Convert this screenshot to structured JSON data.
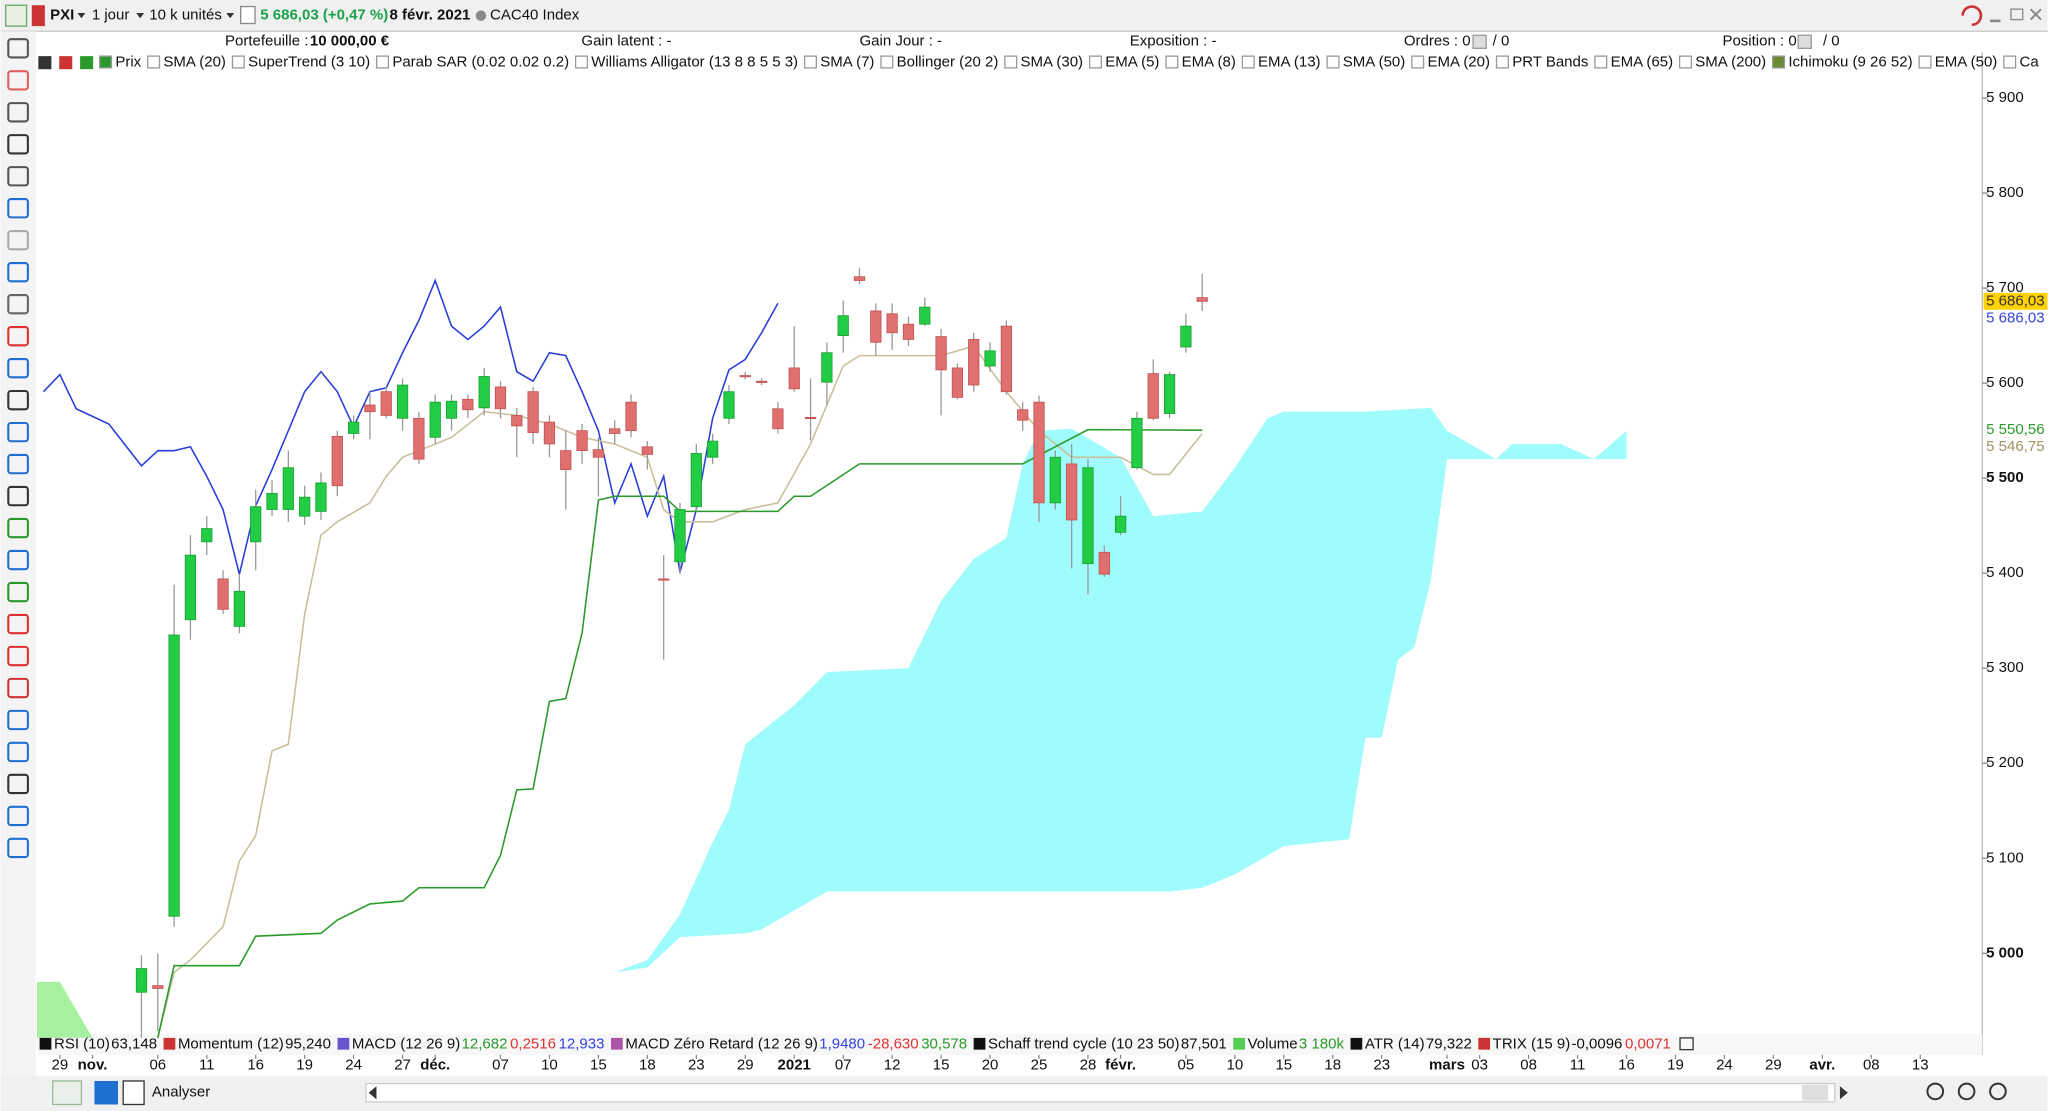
{
  "toolbar": {
    "symbol": "PXI",
    "period": "1 jour",
    "units": "10 k unités",
    "quote": "5 686,03 (+0,47 %)",
    "date": "8 févr. 2021",
    "instrument": "CAC40 Index"
  },
  "account": {
    "portfolio_label": "Portefeuille :",
    "portfolio_value": "10 000,00 €",
    "gain_latent": "Gain latent : -",
    "gain_jour": "Gain Jour : -",
    "exposition": "Exposition : -",
    "ordres": "Ordres : 0",
    "ordres_total": "/ 0",
    "position": "Position : 0",
    "position_total": "/ 0"
  },
  "legend_items": [
    {
      "label": "Prix",
      "checked": true
    },
    {
      "label": "SMA (20)",
      "checked": false
    },
    {
      "label": "SuperTrend (3 10)",
      "checked": false
    },
    {
      "label": "Parab SAR (0.02 0.02 0.2)",
      "checked": false
    },
    {
      "label": "Williams Alligator (13 8 8 5 5 3)",
      "checked": false
    },
    {
      "label": "SMA (7)",
      "checked": false
    },
    {
      "label": "Bollinger (20 2)",
      "checked": false
    },
    {
      "label": "SMA (30)",
      "checked": false
    },
    {
      "label": "EMA (5)",
      "checked": false
    },
    {
      "label": "EMA (8)",
      "checked": false
    },
    {
      "label": "EMA (13)",
      "checked": false
    },
    {
      "label": "SMA (50)",
      "checked": false
    },
    {
      "label": "EMA (20)",
      "checked": false
    },
    {
      "label": "PRT Bands",
      "checked": false
    },
    {
      "label": "EMA (65)",
      "checked": false
    },
    {
      "label": "SMA (200)",
      "checked": false
    },
    {
      "label": "Ichimoku (9 26 52)",
      "checked": true
    },
    {
      "label": "EMA (50)",
      "checked": false
    },
    {
      "label": "Ca",
      "checked": false
    }
  ],
  "chart_data": {
    "type": "candlestick",
    "open": [
      4959,
      4966,
      5039,
      5351,
      5433,
      5394,
      5344,
      5433,
      5467,
      5467,
      5460,
      5465,
      5544,
      5547,
      5577,
      5591,
      5563,
      5563,
      5543,
      5563,
      5583,
      5574,
      5596,
      5566,
      5591,
      5559,
      5529,
      5550,
      5530,
      5552,
      5580,
      5533,
      5394,
      5412,
      5470,
      5522,
      5563,
      5608,
      5602,
      5573,
      5616,
      5564,
      5601,
      5650,
      5712,
      5676,
      5673,
      5662,
      5662,
      5649,
      5616,
      5646,
      5618,
      5660,
      5572,
      5580,
      5474,
      5515,
      5410,
      5422,
      5443,
      5511,
      5610,
      5568,
      5638,
      5690
    ],
    "high": [
      4998,
      5000,
      5388,
      5440,
      5460,
      5403,
      5399,
      5488,
      5498,
      5529,
      5492,
      5506,
      5550,
      5566,
      5591,
      5596,
      5605,
      5570,
      5588,
      5588,
      5588,
      5616,
      5602,
      5574,
      5596,
      5566,
      5550,
      5557,
      5543,
      5561,
      5588,
      5539,
      5419,
      5474,
      5536,
      5547,
      5598,
      5612,
      5605,
      5580,
      5660,
      5605,
      5643,
      5687,
      5721,
      5684,
      5684,
      5670,
      5690,
      5657,
      5621,
      5653,
      5643,
      5666,
      5580,
      5587,
      5529,
      5536,
      5520,
      5429,
      5481,
      5570,
      5625,
      5612,
      5673,
      5715
    ],
    "low": [
      4911,
      4918,
      5028,
      5330,
      5419,
      5357,
      5337,
      5403,
      5460,
      5454,
      5451,
      5456,
      5481,
      5541,
      5541,
      5563,
      5550,
      5515,
      5536,
      5550,
      5563,
      5566,
      5563,
      5522,
      5536,
      5522,
      5467,
      5515,
      5481,
      5536,
      5543,
      5509,
      5309,
      5399,
      5465,
      5515,
      5557,
      5604,
      5598,
      5547,
      5591,
      5540,
      5577,
      5632,
      5704,
      5629,
      5635,
      5639,
      5660,
      5566,
      5583,
      5591,
      5612,
      5588,
      5550,
      5454,
      5467,
      5405,
      5378,
      5396,
      5440,
      5509,
      5561,
      5563,
      5632,
      5676
    ],
    "close": [
      4984,
      4963,
      5335,
      5419,
      5447,
      5362,
      5381,
      5470,
      5484,
      5511,
      5480,
      5495,
      5492,
      5559,
      5570,
      5566,
      5598,
      5520,
      5580,
      5581,
      5572,
      5607,
      5573,
      5555,
      5548,
      5536,
      5509,
      5529,
      5522,
      5547,
      5550,
      5525,
      5393,
      5467,
      5526,
      5539,
      5591,
      5607,
      5601,
      5552,
      5594,
      5563,
      5632,
      5671,
      5708,
      5643,
      5653,
      5646,
      5680,
      5614,
      5585,
      5598,
      5634,
      5591,
      5561,
      5474,
      5522,
      5456,
      5511,
      5399,
      5460,
      5563,
      5563,
      5609,
      5660,
      5686.03
    ],
    "up_color": "#22cc44",
    "down_color": "#e07070",
    "lines": [
      {
        "color": "#2a3fd8",
        "x": [
          -6,
          -5,
          -4,
          -2,
          0,
          1,
          2,
          3,
          4,
          5,
          6,
          7,
          8,
          9,
          10,
          11,
          12,
          13,
          14,
          15,
          16,
          17,
          18,
          19,
          20,
          21,
          22,
          23,
          24,
          25,
          26,
          27,
          28,
          29,
          30,
          31,
          32,
          33,
          34,
          35,
          36,
          37,
          38,
          39
        ],
        "values": [
          5591,
          5609,
          5573,
          5557,
          5513,
          5529,
          5529,
          5533,
          5502,
          5467,
          5399,
          5471,
          5509,
          5550,
          5591,
          5612,
          5591,
          5554,
          5591,
          5595,
          5632,
          5666,
          5708,
          5660,
          5646,
          5660,
          5680,
          5612,
          5602,
          5632,
          5629,
          5591,
          5550,
          5474,
          5515,
          5460,
          5502,
          5401,
          5467,
          5563,
          5614,
          5625,
          5653,
          5684
        ]
      },
      {
        "color": "#c8bf9a",
        "x": [
          1,
          2,
          3,
          5,
          6,
          7,
          8,
          9,
          10,
          11,
          12,
          14,
          15,
          16,
          17,
          19,
          21,
          23,
          25,
          27,
          29,
          31,
          32,
          33,
          35,
          37,
          39,
          41,
          43,
          44,
          49,
          51,
          53,
          55,
          56,
          57,
          60,
          62,
          63,
          65
        ],
        "values": [
          4911,
          4980,
          4993,
          5028,
          5097,
          5124,
          5213,
          5220,
          5357,
          5440,
          5454,
          5474,
          5502,
          5522,
          5529,
          5543,
          5570,
          5566,
          5557,
          5543,
          5536,
          5522,
          5467,
          5454,
          5454,
          5467,
          5474,
          5536,
          5618,
          5629,
          5629,
          5639,
          5591,
          5550,
          5536,
          5522,
          5522,
          5504,
          5504,
          5546.75
        ]
      },
      {
        "color": "#2a9a2a",
        "x": [
          1,
          2,
          4,
          6,
          7,
          11,
          12,
          14,
          16,
          17,
          19,
          21,
          22,
          23,
          24,
          25,
          26,
          27,
          28,
          29,
          32,
          33,
          37,
          39,
          40,
          41,
          44,
          54,
          58,
          65
        ],
        "values": [
          4911,
          4987,
          4987,
          4987,
          5018,
          5021,
          5035,
          5052,
          5055,
          5069,
          5069,
          5069,
          5103,
          5172,
          5173,
          5265,
          5268,
          5337,
          5477,
          5481,
          5481,
          5465,
          5465,
          5465,
          5481,
          5481,
          5515,
          5515,
          5551,
          5550.56
        ]
      }
    ],
    "clouds": [
      {
        "color": "#a0fbfd",
        "x_upper": [
          28,
          29,
          31,
          33,
          35,
          36,
          37,
          40,
          42,
          47,
          49,
          51,
          53,
          54,
          55,
          57,
          60,
          62,
          65,
          67,
          69,
          70,
          75,
          79,
          80,
          83,
          84,
          87,
          89,
          91
        ],
        "upper": [
          4911,
          4980,
          4993,
          5041,
          5117,
          5151,
          5220,
          5261,
          5296,
          5300,
          5371,
          5415,
          5437,
          5515,
          5550,
          5552,
          5522,
          5460,
          5465,
          5511,
          5563,
          5570,
          5570,
          5574,
          5550,
          5520,
          5536,
          5536,
          5520,
          5550
        ],
        "x_lower": [
          28,
          29,
          31,
          33,
          37,
          38,
          42,
          63,
          65,
          67,
          69,
          70,
          74,
          75,
          76,
          77,
          78,
          79,
          80,
          91
        ],
        "lower": [
          4911,
          4980,
          4985,
          5017,
          5021,
          5025,
          5065,
          5065,
          5069,
          5083,
          5103,
          5113,
          5120,
          5227,
          5227,
          5309,
          5322,
          5392,
          5520,
          5520
        ]
      },
      {
        "color": "#a6f0a0",
        "x_upper": [
          -7,
          -5,
          -3
        ],
        "upper": [
          4970,
          4970,
          4911
        ],
        "x_lower": [
          -7,
          -5,
          -3
        ],
        "lower": [
          4911,
          4911,
          4911
        ]
      }
    ],
    "ylim": [
      4911,
      5918
    ],
    "yticks": [
      {
        "value": 5000,
        "label": "5 000"
      },
      {
        "value": 5100,
        "label": "5 100"
      },
      {
        "value": 5200,
        "label": "5 200"
      },
      {
        "value": 5300,
        "label": "5 300"
      },
      {
        "value": 5400,
        "label": "5 400"
      },
      {
        "value": 5500,
        "label": "5 500"
      },
      {
        "value": 5600,
        "label": "5 600"
      },
      {
        "value": 5700,
        "label": "5 700"
      },
      {
        "value": 5800,
        "label": "5 800"
      },
      {
        "value": 5900,
        "label": "5 900"
      }
    ],
    "xlim": [
      -6.5,
      113
    ],
    "xticks": [
      {
        "value": -5,
        "label": "29"
      },
      {
        "value": -3,
        "label": "nov."
      },
      {
        "value": 1,
        "label": "06"
      },
      {
        "value": 4,
        "label": "11"
      },
      {
        "value": 7,
        "label": "16"
      },
      {
        "value": 10,
        "label": "19"
      },
      {
        "value": 13,
        "label": "24"
      },
      {
        "value": 16,
        "label": "27"
      },
      {
        "value": 18,
        "label": "déc."
      },
      {
        "value": 22,
        "label": "07"
      },
      {
        "value": 25,
        "label": "10"
      },
      {
        "value": 28,
        "label": "15"
      },
      {
        "value": 31,
        "label": "18"
      },
      {
        "value": 34,
        "label": "23"
      },
      {
        "value": 37,
        "label": "29"
      },
      {
        "value": 40,
        "label": "2021"
      },
      {
        "value": 43,
        "label": "07"
      },
      {
        "value": 46,
        "label": "12"
      },
      {
        "value": 49,
        "label": "15"
      },
      {
        "value": 52,
        "label": "20"
      },
      {
        "value": 55,
        "label": "25"
      },
      {
        "value": 58,
        "label": "28"
      },
      {
        "value": 60,
        "label": "févr."
      },
      {
        "value": 64,
        "label": "05"
      },
      {
        "value": 67,
        "label": "10"
      },
      {
        "value": 70,
        "label": "15"
      },
      {
        "value": 73,
        "label": "18"
      },
      {
        "value": 76,
        "label": "23"
      },
      {
        "value": 80,
        "label": "mars"
      },
      {
        "value": 82,
        "label": "03"
      },
      {
        "value": 85,
        "label": "08"
      },
      {
        "value": 88,
        "label": "11"
      },
      {
        "value": 91,
        "label": "16"
      },
      {
        "value": 94,
        "label": "19"
      },
      {
        "value": 97,
        "label": "24"
      },
      {
        "value": 100,
        "label": "29"
      },
      {
        "value": 103,
        "label": "avr."
      },
      {
        "value": 106,
        "label": "08"
      },
      {
        "value": 109,
        "label": "13"
      }
    ],
    "price_tags": [
      {
        "value": 5686.03,
        "label": "5 686,03",
        "color": "#333333",
        "background": "#ffd200"
      },
      {
        "value": 5686.03,
        "label": "5 686,03",
        "color": "#3344dd",
        "background": "#ffffff"
      },
      {
        "value": 5550.56,
        "label": "5 550,56",
        "color": "#2a9a2a",
        "background": "#ffffff"
      },
      {
        "value": 5546.75,
        "label": "5 546,75",
        "color": "#a09060",
        "background": "#ffffff"
      }
    ]
  },
  "panels": [
    {
      "name": "RSI (10)",
      "color": "#111111",
      "values": [
        {
          "text": "63,148",
          "color": "#111111"
        }
      ]
    },
    {
      "name": "Momentum (12)",
      "color": "#cc3333",
      "values": [
        {
          "text": "95,240",
          "color": "#111111"
        }
      ]
    },
    {
      "name": "MACD (12 26 9)",
      "color": "#6655cc",
      "values": [
        {
          "text": "12,682",
          "color": "#2a9a2a"
        },
        {
          "text": "0,2516",
          "color": "#dd3333"
        },
        {
          "text": "12,933",
          "color": "#3344dd"
        }
      ]
    },
    {
      "name": "MACD Zéro Retard (12 26 9)",
      "color": "#aa55aa",
      "values": [
        {
          "text": "1,9480",
          "color": "#3344dd"
        },
        {
          "text": "-28,630",
          "color": "#dd3333"
        },
        {
          "text": "30,578",
          "color": "#2a9a2a"
        }
      ]
    },
    {
      "name": "Schaff trend cycle (10 23 50)",
      "color": "#111111",
      "values": [
        {
          "text": "87,501",
          "color": "#111111"
        }
      ]
    },
    {
      "name": "Volume",
      "color": "#55cc55",
      "values": [
        {
          "text": "3 180k",
          "color": "#2a9a2a"
        }
      ]
    },
    {
      "name": "ATR (14)",
      "color": "#111111",
      "values": [
        {
          "text": "79,322",
          "color": "#111111"
        }
      ]
    },
    {
      "name": "TRIX (15 9)",
      "color": "#cc3333",
      "values": [
        {
          "text": "-0,0096",
          "color": "#111111"
        },
        {
          "text": "0,0071",
          "color": "#dd3333"
        }
      ]
    }
  ],
  "bottom_bar": {
    "analyze": "Analyser"
  }
}
